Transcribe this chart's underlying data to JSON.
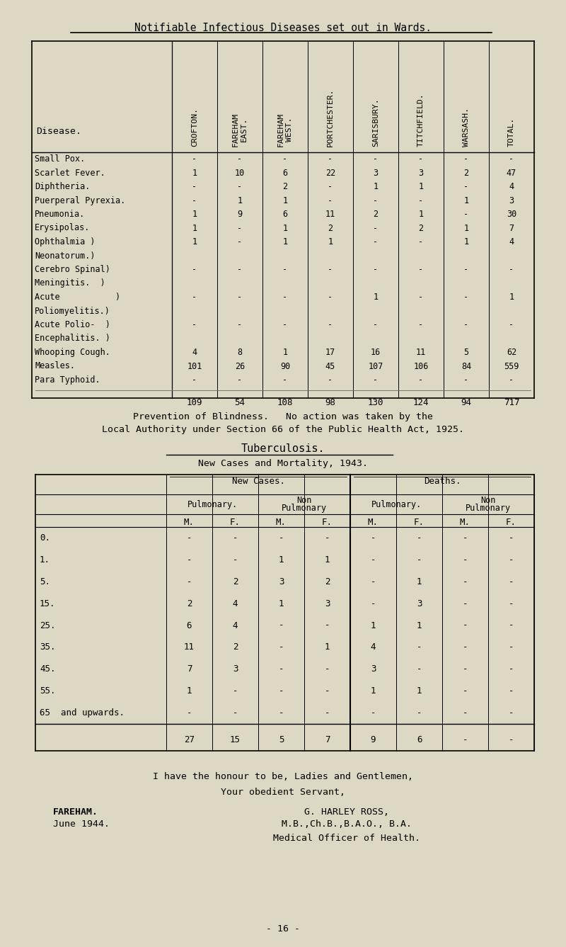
{
  "bg_color": "#ddd8c4",
  "title1": "Notifiable Infectious Diseases set out in Wards.",
  "col_label_lines": [
    [
      "CROFTON."
    ],
    [
      "FAREHAM",
      "EAST."
    ],
    [
      "FAREHAM",
      "WEST."
    ],
    [
      "PORTCHESTER."
    ],
    [
      "SARISBURY."
    ],
    [
      "TITCHFIELD."
    ],
    [
      "WARSASH."
    ],
    [
      "TOTAL."
    ]
  ],
  "table1_rows": [
    [
      "Small Pox.",
      "-",
      "-",
      "-",
      "-",
      "-",
      "-",
      "-",
      "-"
    ],
    [
      "Scarlet Fever.",
      "1",
      "10",
      "6",
      "22",
      "3",
      "3",
      "2",
      "47"
    ],
    [
      "Diphtheria.",
      "-",
      "-",
      "2",
      "-",
      "1",
      "1",
      "-",
      "4"
    ],
    [
      "Puerperal Pyrexia.",
      "-",
      "1",
      "1",
      "-",
      "-",
      "-",
      "1",
      "3"
    ],
    [
      "Pneumonia.",
      "1",
      "9",
      "6",
      "11",
      "2",
      "1",
      "-",
      "30"
    ],
    [
      "Erysipolas.",
      "1",
      "-",
      "1",
      "2",
      "-",
      "2",
      "1",
      "7"
    ],
    [
      "Ophthalmia )",
      "1",
      "-",
      "1",
      "1",
      "-",
      "-",
      "1",
      "4"
    ],
    [
      "Neonatorum.)",
      "",
      "",
      "",
      "",
      "",
      "",
      "",
      ""
    ],
    [
      "Cerebro Spinal)",
      "-",
      "-",
      "-",
      "-",
      "-",
      "-",
      "-",
      "-"
    ],
    [
      "Meningitis.  )",
      "",
      "",
      "",
      "",
      "",
      "",
      "",
      ""
    ],
    [
      "Acute           )",
      "-",
      "-",
      "-",
      "-",
      "1",
      "-",
      "-",
      "1"
    ],
    [
      "Poliomyelitis.)",
      "",
      "",
      "",
      "",
      "",
      "",
      "",
      ""
    ],
    [
      "Acute Polio-  )",
      "-",
      "-",
      "-",
      "-",
      "-",
      "-",
      "-",
      "-"
    ],
    [
      "Encephalitis. )",
      "",
      "",
      "",
      "",
      "",
      "",
      "",
      ""
    ],
    [
      "Whooping Cough.",
      "4",
      "8",
      "1",
      "17",
      "16",
      "11",
      "5",
      "62"
    ],
    [
      "Measles.",
      "101",
      "26",
      "90",
      "45",
      "107",
      "106",
      "84",
      "559"
    ],
    [
      "Para Typhoid.",
      "-",
      "-",
      "-",
      "-",
      "-",
      "-",
      "-",
      "-"
    ]
  ],
  "table1_totals": [
    "109",
    "54",
    "108",
    "98",
    "130",
    "124",
    "94",
    "717"
  ],
  "prevention_line1": "Prevention of Blindness.   No action was taken by the",
  "prevention_line2": "Local Authority under Section 66 of the Public Health Act, 1925.",
  "tb_title": "Tuberculosis.",
  "tb_subtitle": "New Cases and Mortality, 1943.",
  "tb_rows": [
    [
      "0.",
      "-",
      "-",
      "-",
      "-",
      "-",
      "-",
      "-",
      "-"
    ],
    [
      "1.",
      "-",
      "-",
      "1",
      "1",
      "-",
      "-",
      "-",
      "-"
    ],
    [
      "5.",
      "-",
      "2",
      "3",
      "2",
      "-",
      "1",
      "-",
      "-"
    ],
    [
      "15.",
      "2",
      "4",
      "1",
      "3",
      "-",
      "3",
      "-",
      "-"
    ],
    [
      "25.",
      "6",
      "4",
      "-",
      "-",
      "1",
      "1",
      "-",
      "-"
    ],
    [
      "35.",
      "11",
      "2",
      "-",
      "1",
      "4",
      "-",
      "-",
      "-"
    ],
    [
      "45.",
      "7",
      "3",
      "-",
      "-",
      "3",
      "-",
      "-",
      "-"
    ],
    [
      "55.",
      "1",
      "-",
      "-",
      "-",
      "1",
      "1",
      "-",
      "-"
    ],
    [
      "65  and upwards.",
      "-",
      "-",
      "-",
      "-",
      "-",
      "-",
      "-",
      "-"
    ]
  ],
  "tb_totals": [
    "27",
    "15",
    "5",
    "7",
    "9",
    "6",
    "-",
    "-"
  ],
  "closing1": "I have the honour to be, Ladies and Gentlemen,",
  "closing2": "Your obedient Servant,",
  "closing3": "G. HARLEY ROSS,",
  "closing4": "M.B.,Ch.B.,B.A.O., B.A.",
  "location": "FAREHAM.",
  "date": "June 1944.",
  "role": "Medical Officer of Health.",
  "page": "- 16 -"
}
